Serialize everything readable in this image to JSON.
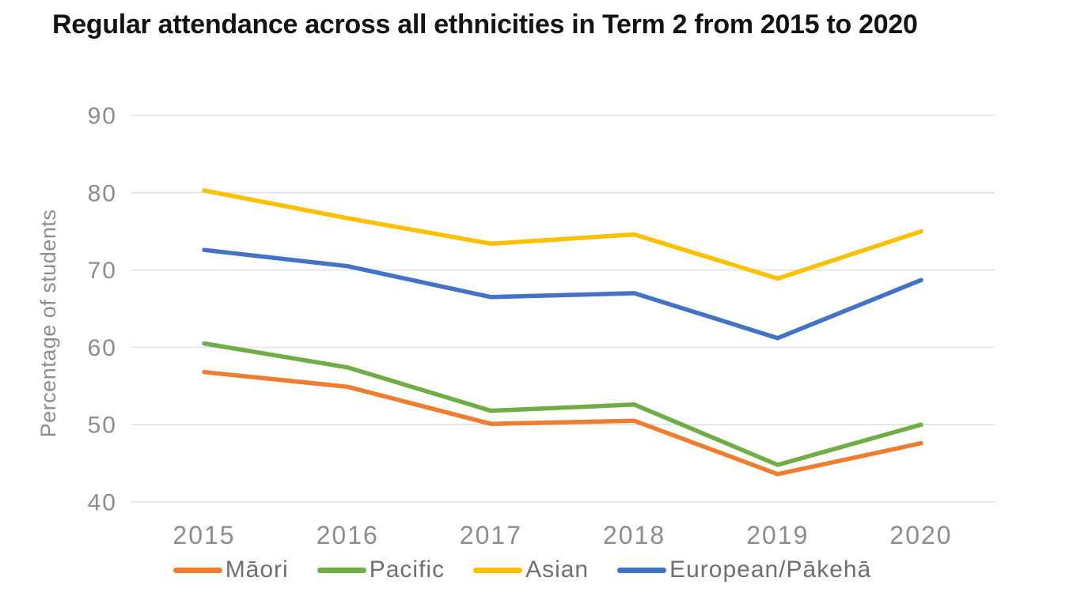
{
  "chart_data": {
    "type": "line",
    "title": "Regular attendance across all ethnicities in Term 2 from 2015 to 2020",
    "ylabel": "Percentage of students",
    "xlabel": "",
    "x_categories": [
      "2015",
      "2016",
      "2017",
      "2018",
      "2019",
      "2020"
    ],
    "series": [
      {
        "name": "Māori",
        "color": "#ED7D31",
        "values": [
          56.8,
          54.9,
          50.1,
          50.5,
          43.6,
          47.6
        ]
      },
      {
        "name": "Pacific",
        "color": "#70AD47",
        "values": [
          60.5,
          57.4,
          51.8,
          52.6,
          44.8,
          50.0
        ]
      },
      {
        "name": "Asian",
        "color": "#FFC000",
        "values": [
          80.3,
          76.7,
          73.4,
          74.6,
          68.9,
          75.0
        ]
      },
      {
        "name": "European/Pākehā",
        "color": "#4472C4",
        "values": [
          72.6,
          70.5,
          66.5,
          67.0,
          61.2,
          68.7
        ]
      }
    ],
    "yticks": [
      90,
      80,
      70,
      60,
      50,
      40
    ],
    "ylim": [
      40,
      90
    ],
    "grid": true,
    "legend_position": "bottom"
  },
  "colors": {
    "background": "#FFFFFF",
    "gridline": "#E2E2E2",
    "tick_text": "#8C8C8C",
    "axis_title_text": "#8E8E8E",
    "legend_text": "#6F6F6F",
    "title_text": "#141414"
  }
}
